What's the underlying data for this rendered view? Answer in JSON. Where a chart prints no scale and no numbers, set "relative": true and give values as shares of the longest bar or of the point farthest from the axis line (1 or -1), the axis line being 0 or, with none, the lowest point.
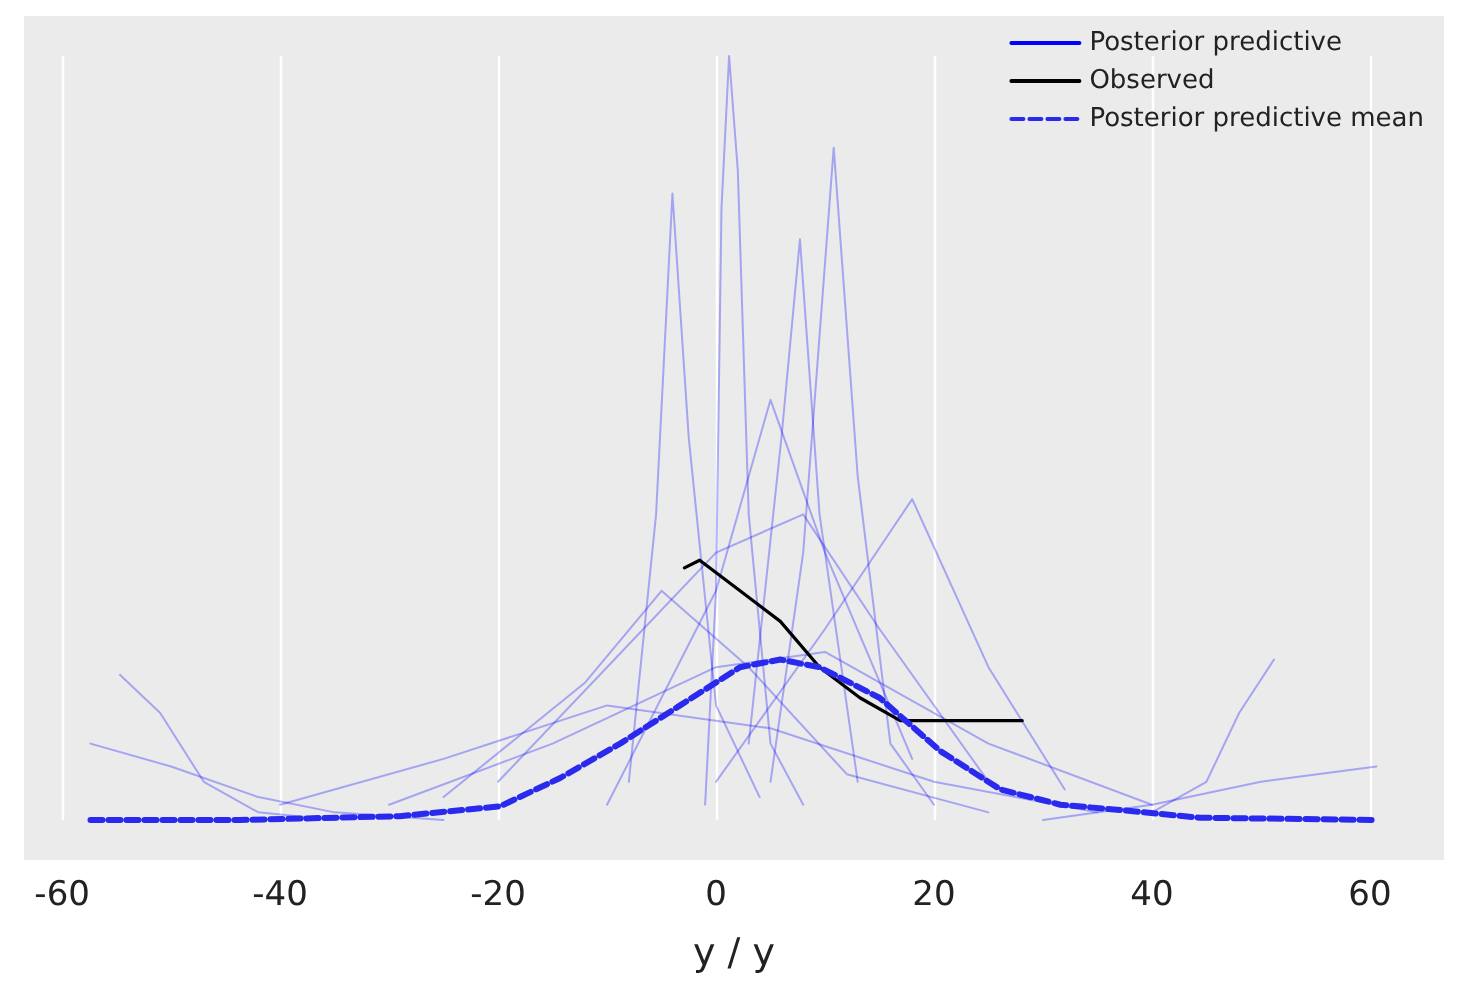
{
  "chart_data": {
    "type": "line",
    "relative": true,
    "xlabel": "y / y",
    "xlim": [
      -63.5,
      66.8
    ],
    "xticks": [
      -60,
      -40,
      -20,
      0,
      20,
      40,
      60
    ],
    "grid": "x",
    "legend": "top right",
    "marker": "none",
    "series": [
      {
        "name": "Posterior predictive",
        "color": "#0000ff",
        "x": [
          -1,
          0,
          0.5,
          1.2,
          2,
          3,
          5,
          8
        ],
        "values": [
          0.02,
          0.3,
          0.8,
          1.0,
          0.85,
          0.4,
          0.1,
          0.02
        ]
      },
      {
        "color": "#0000ff",
        "x": [
          -8,
          -5.5,
          -4,
          -2.5,
          0,
          4
        ],
        "values": [
          0.05,
          0.4,
          0.82,
          0.5,
          0.15,
          0.03
        ]
      },
      {
        "color": "#0000ff",
        "x": [
          5,
          8,
          10.8,
          13,
          16,
          20
        ],
        "values": [
          0.05,
          0.35,
          0.88,
          0.45,
          0.1,
          0.02
        ]
      },
      {
        "color": "#0000ff",
        "x": [
          -57.4,
          -50,
          -42,
          -35,
          -25
        ],
        "values": [
          0.1,
          0.07,
          0.03,
          0.01,
          0
        ]
      },
      {
        "color": "#0000ff",
        "x": [
          -54.7,
          -51,
          -47,
          -42,
          -35
        ],
        "values": [
          0.19,
          0.14,
          0.05,
          0.01,
          0
        ]
      },
      {
        "color": "#0000ff",
        "x": [
          30,
          40,
          50,
          60.6
        ],
        "values": [
          0,
          0.02,
          0.05,
          0.07
        ]
      },
      {
        "color": "#0000ff",
        "x": [
          40,
          45,
          48,
          51.2
        ],
        "values": [
          0.01,
          0.05,
          0.14,
          0.21
        ]
      },
      {
        "color": "#0000ff",
        "x": [
          -30,
          -15,
          0,
          10,
          25,
          40
        ],
        "values": [
          0.02,
          0.1,
          0.2,
          0.22,
          0.1,
          0.02
        ]
      },
      {
        "color": "#0000ff",
        "x": [
          -20,
          -10,
          0,
          8,
          15,
          25
        ],
        "values": [
          0.05,
          0.2,
          0.35,
          0.4,
          0.25,
          0.05
        ]
      },
      {
        "color": "#0000ff",
        "x": [
          -10,
          0,
          5,
          10,
          18
        ],
        "values": [
          0.02,
          0.3,
          0.55,
          0.35,
          0.08
        ]
      },
      {
        "color": "#0000ff",
        "x": [
          -25,
          -12,
          -5,
          3,
          12,
          25
        ],
        "values": [
          0.03,
          0.18,
          0.3,
          0.2,
          0.06,
          0.01
        ]
      },
      {
        "color": "#0000ff",
        "x": [
          0,
          10,
          18,
          25,
          32
        ],
        "values": [
          0.05,
          0.25,
          0.42,
          0.2,
          0.04
        ]
      },
      {
        "color": "#0000ff",
        "x": [
          -40,
          -25,
          -10,
          5,
          20,
          35
        ],
        "values": [
          0.02,
          0.08,
          0.15,
          0.12,
          0.05,
          0.01
        ]
      },
      {
        "color": "#0000ff",
        "x": [
          3,
          6,
          7.7,
          9.5,
          13
        ],
        "values": [
          0.1,
          0.5,
          0.76,
          0.4,
          0.05
        ]
      },
      {
        "name": "Observed",
        "color": "#000000",
        "x": [
          -2.9,
          -1.5,
          2.2,
          5.9,
          9.5,
          13.2,
          16.9,
          20.6,
          24.2,
          28.1
        ],
        "values": [
          0.33,
          0.34,
          0.3,
          0.26,
          0.2,
          0.16,
          0.13,
          0.13,
          0.13,
          0.13
        ]
      },
      {
        "name": "Posterior predictive mean",
        "color": "#2a2aee",
        "line_style": "dashed",
        "x": [
          -57.4,
          -43.7,
          -29,
          -19.8,
          -14.3,
          -8.8,
          -3.3,
          2.2,
          5.9,
          9.5,
          15,
          20.6,
          26.1,
          31.6,
          37.1,
          44.4,
          60.6
        ],
        "values": [
          0,
          0,
          0.005,
          0.018,
          0.055,
          0.1,
          0.15,
          0.2,
          0.21,
          0.2,
          0.16,
          0.09,
          0.04,
          0.02,
          0.013,
          0.003,
          0
        ]
      }
    ]
  }
}
